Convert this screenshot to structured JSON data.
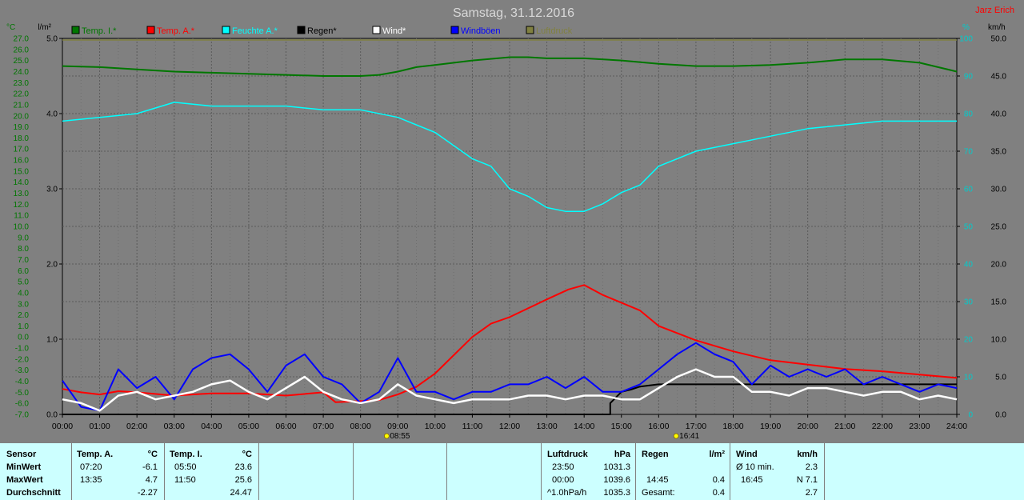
{
  "header": {
    "title": "Samstag, 31.12.2016",
    "author": "Jarz Erich"
  },
  "colors": {
    "temp_in": "#007700",
    "temp_out": "#ff0000",
    "humidity": "#00ffff",
    "rain": "#000000",
    "wind": "#ffffff",
    "gust": "#0000ff",
    "pressure": "#808040",
    "left_axis": "#007700",
    "right_axis": "#00cccc"
  },
  "chart_data": {
    "type": "line",
    "title": "Samstag, 31.12.2016",
    "legend": [
      {
        "key": "temp_in",
        "label": "Temp. I.*"
      },
      {
        "key": "temp_out",
        "label": "Temp. A.*"
      },
      {
        "key": "humidity",
        "label": "Feuchte A.*"
      },
      {
        "key": "rain",
        "label": "Regen*"
      },
      {
        "key": "wind",
        "label": "Wind*"
      },
      {
        "key": "gust",
        "label": "Windböen"
      },
      {
        "key": "pressure",
        "label": "Luftdruck"
      }
    ],
    "axes": {
      "temp": {
        "unit": "°C",
        "min": -7,
        "max": 27,
        "step": 1
      },
      "rain": {
        "unit": "l/m²",
        "min": 0,
        "max": 5,
        "step": 1
      },
      "humidity": {
        "unit": "%",
        "min": 0,
        "max": 100,
        "step": 10
      },
      "wind": {
        "unit": "km/h",
        "min": 0,
        "max": 50,
        "step": 5
      },
      "x": {
        "min": 0,
        "max": 24,
        "labels": [
          "00:00",
          "01:00",
          "02:00",
          "03:00",
          "04:00",
          "05:00",
          "06:00",
          "07:00",
          "08:00",
          "09:00",
          "10:00",
          "11:00",
          "12:00",
          "13:00",
          "14:00",
          "15:00",
          "16:00",
          "17:00",
          "18:00",
          "19:00",
          "20:00",
          "21:00",
          "22:00",
          "23:00",
          "24:00"
        ]
      }
    },
    "sunrise": "08:55",
    "sunset": "16:41",
    "series": [
      {
        "key": "temp_in",
        "x": [
          0,
          1,
          2,
          3,
          4,
          5,
          6,
          7,
          8,
          8.5,
          9,
          9.5,
          10,
          11,
          12,
          12.5,
          13,
          14,
          15,
          16,
          17,
          18,
          19,
          20,
          21,
          22,
          23,
          24
        ],
        "y": [
          24.5,
          24.4,
          24.2,
          24.0,
          23.9,
          23.8,
          23.7,
          23.6,
          23.6,
          23.7,
          24.0,
          24.4,
          24.6,
          25.0,
          25.3,
          25.3,
          25.2,
          25.2,
          25.0,
          24.7,
          24.5,
          24.5,
          24.6,
          24.8,
          25.1,
          25.1,
          24.8,
          24.0
        ]
      },
      {
        "key": "temp_out",
        "x": [
          0,
          0.5,
          1,
          1.5,
          2,
          3,
          4,
          5,
          6,
          7,
          7.33,
          8,
          8.5,
          9,
          9.5,
          10,
          11,
          11.5,
          12,
          13,
          13.58,
          14,
          14.5,
          15,
          15.5,
          16,
          17,
          17.5,
          18,
          19,
          20,
          21,
          22,
          23,
          24
        ],
        "y": [
          -4.7,
          -5.0,
          -5.2,
          -4.9,
          -5.0,
          -5.3,
          -5.1,
          -5.1,
          -5.3,
          -5.0,
          -5.9,
          -5.8,
          -5.7,
          -5.2,
          -4.5,
          -3.3,
          0.0,
          1.2,
          1.8,
          3.4,
          4.3,
          4.7,
          3.8,
          3.1,
          2.4,
          1.0,
          -0.3,
          -0.8,
          -1.3,
          -2.1,
          -2.5,
          -2.9,
          -3.1,
          -3.4,
          -3.7
        ]
      },
      {
        "key": "humidity",
        "x": [
          0,
          1,
          2,
          3,
          4,
          5,
          6,
          7,
          8,
          9,
          10,
          11,
          11.5,
          12,
          12.5,
          13,
          13.5,
          14,
          14.5,
          15,
          15.5,
          16,
          17,
          18,
          19,
          20,
          21,
          22,
          23,
          24
        ],
        "y": [
          78,
          79,
          80,
          83,
          82,
          82,
          82,
          81,
          81,
          79,
          75,
          68,
          66,
          60,
          58,
          55,
          54,
          54,
          56,
          59,
          61,
          66,
          70,
          72,
          74,
          76,
          77,
          78,
          78,
          78
        ]
      },
      {
        "key": "rain",
        "x": [
          0,
          14.7,
          14.7,
          15,
          15.25,
          15.5,
          16,
          17,
          18,
          19,
          20,
          21,
          22,
          23,
          24
        ],
        "y": [
          0,
          0,
          0.15,
          0.3,
          0.33,
          0.37,
          0.4,
          0.4,
          0.4,
          0.4,
          0.4,
          0.4,
          0.4,
          0.4,
          0.4
        ]
      },
      {
        "key": "wind",
        "x": [
          0,
          0.5,
          1,
          1.5,
          2,
          2.5,
          3,
          3.5,
          4,
          4.5,
          5,
          5.5,
          6,
          6.5,
          7,
          7.5,
          8,
          8.5,
          9,
          9.5,
          10,
          10.5,
          11,
          11.5,
          12,
          12.5,
          13,
          13.5,
          14,
          14.5,
          15,
          15.5,
          16,
          16.5,
          17,
          17.5,
          18,
          18.5,
          19,
          19.5,
          20,
          20.5,
          21,
          21.5,
          22,
          22.5,
          23,
          23.5,
          24
        ],
        "y": [
          2,
          1.5,
          0.5,
          2.5,
          3,
          2,
          2.5,
          3,
          4,
          4.5,
          3,
          2,
          3.5,
          5,
          3,
          2,
          1.5,
          2,
          4,
          2.5,
          2,
          1.5,
          2,
          2,
          2,
          2.5,
          2.5,
          2,
          2.5,
          2.5,
          2,
          2,
          3.5,
          5,
          6,
          5,
          5,
          3,
          3,
          2.5,
          3.5,
          3.5,
          3,
          2.5,
          3,
          3,
          2,
          2.5,
          2
        ]
      },
      {
        "key": "gust",
        "x": [
          0,
          0.5,
          1,
          1.5,
          2,
          2.5,
          3,
          3.5,
          4,
          4.5,
          5,
          5.5,
          6,
          6.5,
          7,
          7.5,
          8,
          8.5,
          9,
          9.5,
          10,
          10.5,
          11,
          11.5,
          12,
          12.5,
          13,
          13.5,
          14,
          14.5,
          15,
          15.5,
          16,
          16.5,
          17,
          17.5,
          18,
          18.5,
          19,
          19.5,
          20,
          20.5,
          21,
          21.5,
          22,
          22.5,
          23,
          23.5,
          24
        ],
        "y": [
          4.5,
          1,
          0.5,
          6,
          3.5,
          5,
          2,
          6,
          7.5,
          8,
          6,
          3,
          6.5,
          8,
          5,
          4,
          1.5,
          3,
          7.5,
          3,
          3,
          2,
          3,
          3,
          4,
          4,
          5,
          3.5,
          5,
          3,
          3,
          4,
          6,
          8,
          9.5,
          8,
          7,
          4,
          6.5,
          5,
          6,
          5,
          6,
          4,
          5,
          4,
          3,
          4,
          3.5
        ]
      }
    ]
  },
  "stats": {
    "sensor": {
      "header": "Sensor",
      "rows": [
        "MinWert",
        "MaxWert",
        "Durchschnitt"
      ]
    },
    "temp_a": {
      "header": "Temp. A.",
      "unit": "°C",
      "times": [
        "07:20",
        "13:35",
        ""
      ],
      "values": [
        "-6.1",
        "4.7",
        "-2.27"
      ]
    },
    "temp_i": {
      "header": "Temp. I.",
      "unit": "°C",
      "times": [
        "05:50",
        "11:50",
        ""
      ],
      "values": [
        "23.6",
        "25.6",
        "24.47"
      ]
    },
    "luftdruck": {
      "header": "Luftdruck",
      "unit": "hPa",
      "times": [
        "23:50",
        "00:00",
        "^1.0hPa/h"
      ],
      "values": [
        "1031.3",
        "1039.6",
        "1035.3"
      ]
    },
    "regen": {
      "header": "Regen",
      "unit": "l/m²",
      "times": [
        "",
        "14:45",
        "Gesamt:"
      ],
      "values": [
        "",
        "0.4",
        "0.4"
      ]
    },
    "wind": {
      "header": "Wind",
      "unit": "km/h",
      "times": [
        "Ø 10 min.",
        "16:45",
        ""
      ],
      "values": [
        "2.3",
        "N 7.1",
        "2.7"
      ]
    }
  }
}
